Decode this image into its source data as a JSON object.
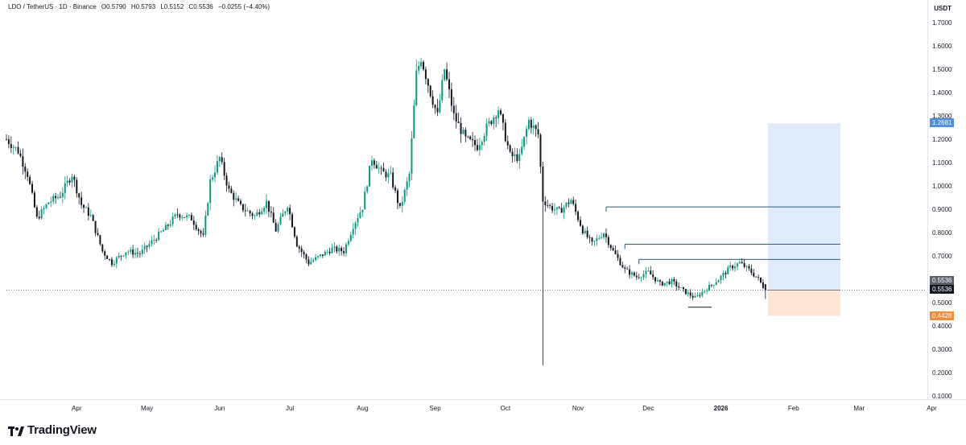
{
  "header": {
    "symbol": "LDO / TetherUS · 1D · Binance",
    "open": "O0.5790",
    "high": "H0.5793",
    "low": "L0.5152",
    "close": "C0.5536",
    "change": "−0.0255 (−4.40%)"
  },
  "axis": {
    "currency": "USDT",
    "price_ticks": [
      "1.7000",
      "1.6000",
      "1.5000",
      "1.4000",
      "1.3000",
      "1.2000",
      "1.1000",
      "1.0000",
      "0.9000",
      "0.8000",
      "0.7000",
      "0.6000",
      "0.5000",
      "0.4000",
      "0.3000",
      "0.2000",
      "0.1000"
    ],
    "time_ticks": [
      "Apr",
      "May",
      "Jun",
      "Jul",
      "Aug",
      "Sep",
      "Oct",
      "Nov",
      "Dec",
      "2026",
      "Feb",
      "Mar",
      "Apr"
    ]
  },
  "badges": {
    "target": "1.2681",
    "current_dup": "0.5536",
    "current": "0.5536",
    "stop": "0.4428"
  },
  "colors": {
    "up": "#089981",
    "down": "#131722",
    "profit_zone": "#dbe9fb",
    "loss_zone": "#fde1cf",
    "target_badge": "#4a8fe0",
    "stop_badge": "#f08c3a",
    "level_line": "#2f5d7a"
  },
  "brand": {
    "name": "TradingView"
  },
  "chart_data": {
    "type": "candlestick",
    "series_name": "LDO / TetherUS",
    "y_range": [
      0.1,
      1.72
    ],
    "x_range": [
      "2025-03-02",
      "2026-04-10"
    ],
    "path": [
      [
        "2025-03-02",
        1.2
      ],
      [
        "2025-03-07",
        1.15
      ],
      [
        "2025-03-11",
        1.05
      ],
      [
        "2025-03-15",
        0.86
      ],
      [
        "2025-03-20",
        0.93
      ],
      [
        "2025-03-25",
        0.96
      ],
      [
        "2025-03-30",
        1.05
      ],
      [
        "2025-04-03",
        0.92
      ],
      [
        "2025-04-07",
        0.87
      ],
      [
        "2025-04-12",
        0.72
      ],
      [
        "2025-04-16",
        0.67
      ],
      [
        "2025-04-22",
        0.72
      ],
      [
        "2025-04-28",
        0.71
      ],
      [
        "2025-05-03",
        0.76
      ],
      [
        "2025-05-09",
        0.82
      ],
      [
        "2025-05-14",
        0.88
      ],
      [
        "2025-05-20",
        0.86
      ],
      [
        "2025-05-25",
        0.78
      ],
      [
        "2025-05-28",
        1.02
      ],
      [
        "2025-06-01",
        1.12
      ],
      [
        "2025-06-05",
        0.98
      ],
      [
        "2025-06-10",
        0.91
      ],
      [
        "2025-06-16",
        0.87
      ],
      [
        "2025-06-21",
        0.93
      ],
      [
        "2025-06-25",
        0.81
      ],
      [
        "2025-06-30",
        0.92
      ],
      [
        "2025-07-04",
        0.75
      ],
      [
        "2025-07-09",
        0.67
      ],
      [
        "2025-07-14",
        0.7
      ],
      [
        "2025-07-19",
        0.73
      ],
      [
        "2025-07-24",
        0.72
      ],
      [
        "2025-07-28",
        0.83
      ],
      [
        "2025-08-01",
        0.91
      ],
      [
        "2025-08-05",
        1.12
      ],
      [
        "2025-08-09",
        1.06
      ],
      [
        "2025-08-13",
        1.04
      ],
      [
        "2025-08-17",
        0.9
      ],
      [
        "2025-08-21",
        1.05
      ],
      [
        "2025-08-24",
        1.48
      ],
      [
        "2025-08-26",
        1.55
      ],
      [
        "2025-08-30",
        1.4
      ],
      [
        "2025-09-02",
        1.3
      ],
      [
        "2025-09-05",
        1.5
      ],
      [
        "2025-09-09",
        1.3
      ],
      [
        "2025-09-14",
        1.2
      ],
      [
        "2025-09-19",
        1.17
      ],
      [
        "2025-09-23",
        1.25
      ],
      [
        "2025-09-28",
        1.33
      ],
      [
        "2025-10-03",
        1.13
      ],
      [
        "2025-10-07",
        1.12
      ],
      [
        "2025-10-11",
        1.28
      ],
      [
        "2025-10-15",
        1.22
      ],
      [
        "2025-10-17",
        0.94
      ],
      [
        "2025-10-20",
        0.91
      ],
      [
        "2025-10-24",
        0.89
      ],
      [
        "2025-10-29",
        0.94
      ],
      [
        "2025-11-03",
        0.81
      ],
      [
        "2025-11-07",
        0.75
      ],
      [
        "2025-11-12",
        0.8
      ],
      [
        "2025-11-16",
        0.72
      ],
      [
        "2025-11-21",
        0.64
      ],
      [
        "2025-11-26",
        0.61
      ],
      [
        "2025-12-01",
        0.63
      ],
      [
        "2025-12-06",
        0.58
      ],
      [
        "2025-12-11",
        0.59
      ],
      [
        "2025-12-16",
        0.55
      ],
      [
        "2025-12-21",
        0.52
      ],
      [
        "2025-12-26",
        0.56
      ],
      [
        "2025-12-31",
        0.6
      ],
      [
        "2026-01-05",
        0.65
      ],
      [
        "2026-01-09",
        0.67
      ],
      [
        "2026-01-13",
        0.64
      ],
      [
        "2026-01-17",
        0.6
      ],
      [
        "2026-01-20",
        0.5536
      ]
    ],
    "spike_low": {
      "date": "2025-10-17",
      "value": 0.23
    },
    "last_candle": {
      "date": "2026-01-20",
      "open": 0.579,
      "high": 0.5793,
      "low": 0.5152,
      "close": 0.5536
    },
    "horizontal_levels": [
      {
        "value": 0.91,
        "from": "2025-11-13"
      },
      {
        "value": 0.75,
        "from": "2025-11-21"
      },
      {
        "value": 0.685,
        "from": "2025-11-27"
      }
    ],
    "support_line": {
      "value": 0.48,
      "from": "2025-12-18",
      "to": "2025-12-28"
    },
    "position": {
      "type": "long",
      "entry": 0.5536,
      "target": 1.2681,
      "stop": 0.4428,
      "start": "2026-01-21",
      "end": "2026-02-21"
    }
  }
}
